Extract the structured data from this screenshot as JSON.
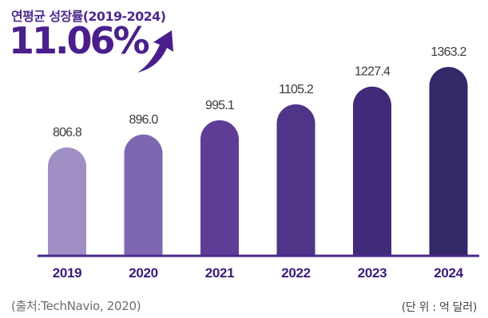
{
  "header": {
    "subtitle": "연평균 성장률(2019-2024)",
    "cagr": "11.06%",
    "arrow_icon": "up-right-arrow-icon"
  },
  "chart_data": {
    "type": "bar",
    "categories": [
      "2019",
      "2020",
      "2021",
      "2022",
      "2023",
      "2024"
    ],
    "values": [
      806.8,
      896.0,
      995.1,
      1105.2,
      1227.4,
      1363.2
    ],
    "value_labels": [
      "806.8",
      "896.0",
      "995.1",
      "1105.2",
      "1227.4",
      "1363.2"
    ],
    "bar_colors": [
      "#a08fc4",
      "#7e67b1",
      "#5f3d97",
      "#4e3587",
      "#3f2b7a",
      "#352868"
    ],
    "baseline_color": "#4a2a8a",
    "grid": false,
    "legend": "none"
  },
  "footer": {
    "source": "(출처:TechNavio, 2020)",
    "unit": "(단 위 : 억 달러)"
  }
}
